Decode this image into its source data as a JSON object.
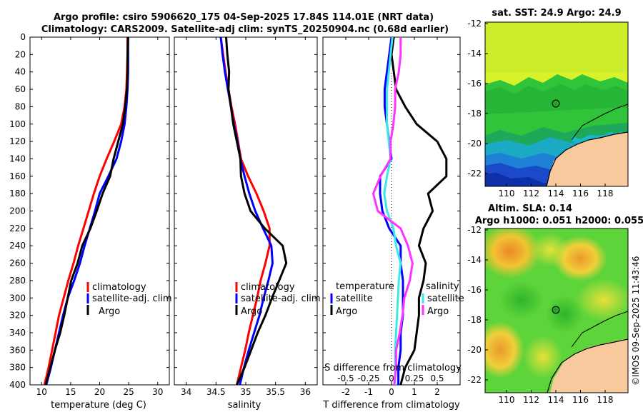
{
  "figure": {
    "title_line1": "Argo profile: csiro 5906620_175 04-Sep-2025 17.84S 114.01E (NRT data)",
    "title_line2": "Climatology: CARS2009. Satellite-adj clim: synTS_20250904.nc (0.68d earlier)",
    "credit": "©IMOS 09-Sep-2025 11:43:46"
  },
  "colors": {
    "climatology": "#ff0000",
    "satellite": "#0000ff",
    "argo": "#000000",
    "temperature_diff_sat": "#3ae8e8",
    "salinity_diff_sat": "#ff33ff"
  },
  "depth_ticks": [
    "0",
    "20",
    "40",
    "60",
    "80",
    "100",
    "120",
    "140",
    "160",
    "180",
    "200",
    "220",
    "240",
    "260",
    "280",
    "300",
    "320",
    "340",
    "360",
    "380",
    "400"
  ],
  "legend": {
    "climatology": "climatology",
    "satellite_adj": "satellite-adj. clim",
    "argo": "Argo",
    "temperature": "temperature",
    "salinity": "salinity",
    "satellite": "satellite"
  },
  "chart_data": [
    {
      "type": "line",
      "id": "temperature",
      "xlabel": "temperature (deg C)",
      "ylabel": "depth",
      "xlim": [
        8,
        32
      ],
      "ylim": [
        400,
        0
      ],
      "xticks": [
        10,
        15,
        20,
        25,
        30
      ],
      "xtick_labels": [
        "10",
        "15",
        "20",
        "25",
        "30"
      ],
      "depth": [
        0,
        20,
        40,
        60,
        80,
        100,
        120,
        140,
        160,
        180,
        200,
        220,
        240,
        260,
        280,
        300,
        320,
        340,
        360,
        380,
        400
      ],
      "series": [
        {
          "name": "climatology",
          "values": [
            24.8,
            24.8,
            24.7,
            24.6,
            24.3,
            23.7,
            22.5,
            21.2,
            20.0,
            19.0,
            18.1,
            17.2,
            16.3,
            15.5,
            14.6,
            13.8,
            13.0,
            12.4,
            11.8,
            11.2,
            10.5
          ]
        },
        {
          "name": "satellite-adj. clim",
          "values": [
            24.9,
            24.9,
            24.9,
            24.8,
            24.6,
            24.3,
            23.7,
            22.9,
            21.5,
            20.0,
            19.2,
            18.3,
            17.4,
            16.6,
            15.6,
            14.5,
            13.7,
            13.0,
            12.3,
            11.6,
            10.8
          ]
        },
        {
          "name": "Argo",
          "values": [
            24.9,
            24.8,
            24.8,
            24.7,
            24.4,
            24.0,
            23.2,
            22.4,
            21.8,
            20.5,
            19.5,
            18.4,
            17.0,
            16.2,
            15.1,
            14.5,
            13.9,
            13.2,
            12.3,
            11.5,
            10.7
          ]
        }
      ]
    },
    {
      "type": "line",
      "id": "salinity",
      "xlabel": "salinity",
      "ylabel": "",
      "xlim": [
        33.8,
        36.2
      ],
      "ylim": [
        400,
        0
      ],
      "xticks": [
        34,
        34.5,
        35,
        35.5,
        36
      ],
      "xtick_labels": [
        "34",
        "34.5",
        "35",
        "35.5",
        "36"
      ],
      "depth": [
        0,
        20,
        40,
        60,
        80,
        100,
        120,
        140,
        160,
        180,
        200,
        220,
        240,
        260,
        280,
        300,
        320,
        340,
        360,
        380,
        400
      ],
      "series": [
        {
          "name": "climatology",
          "values": [
            34.58,
            34.62,
            34.66,
            34.71,
            34.76,
            34.82,
            34.87,
            34.92,
            35.04,
            35.18,
            35.3,
            35.4,
            35.4,
            35.33,
            35.25,
            35.19,
            35.12,
            35.05,
            34.99,
            34.92,
            34.85
          ]
        },
        {
          "name": "satellite-adj. clim",
          "values": [
            34.58,
            34.61,
            34.65,
            34.7,
            34.75,
            34.8,
            34.86,
            34.91,
            34.98,
            35.06,
            35.16,
            35.29,
            35.43,
            35.45,
            35.38,
            35.3,
            35.23,
            35.14,
            35.05,
            34.97,
            34.9
          ]
        },
        {
          "name": "Argo",
          "values": [
            34.67,
            34.69,
            34.72,
            34.71,
            34.75,
            34.79,
            34.85,
            34.91,
            34.92,
            34.98,
            35.08,
            35.32,
            35.62,
            35.68,
            35.56,
            35.44,
            35.33,
            35.2,
            35.09,
            34.98,
            34.85
          ]
        }
      ]
    },
    {
      "type": "line",
      "id": "difference",
      "xlabel": "T difference from climatology",
      "xlabel_top": "S difference from climatology",
      "ylabel": "",
      "xlim": [
        -3,
        3
      ],
      "ylim": [
        400,
        0
      ],
      "xticks": [
        -2,
        -1,
        0,
        1,
        2
      ],
      "xtick_labels": [
        "-2",
        "-1",
        "0",
        "1",
        "2"
      ],
      "s_xlim": [
        -0.75,
        0.75
      ],
      "s_xticks": [
        -0.5,
        -0.25,
        0,
        0.25,
        0.5
      ],
      "s_xtick_labels": [
        "-0.5",
        "-0.25",
        "0",
        "0.25",
        "0.5"
      ],
      "depth": [
        0,
        20,
        40,
        60,
        80,
        100,
        120,
        140,
        160,
        180,
        200,
        220,
        240,
        260,
        280,
        300,
        320,
        340,
        360,
        380,
        400
      ],
      "series": [
        {
          "name": "temperature satellite",
          "axis": "T",
          "values": [
            0.0,
            -0.1,
            -0.2,
            -0.3,
            -0.3,
            -0.2,
            -0.1,
            0.0,
            -0.5,
            -0.5,
            -0.4,
            -0.1,
            0.4,
            0.4,
            0.5,
            0.5,
            0.5,
            0.4,
            0.4,
            0.3,
            0.3
          ]
        },
        {
          "name": "temperature Argo",
          "axis": "T",
          "values": [
            0.1,
            0.0,
            0.1,
            0.2,
            0.6,
            1.1,
            2.0,
            2.4,
            2.4,
            1.6,
            1.8,
            1.4,
            1.2,
            1.5,
            1.4,
            1.2,
            1.2,
            1.1,
            1.0,
            0.6,
            0.4
          ]
        },
        {
          "name": "salinity satellite",
          "axis": "S",
          "values": [
            0.01,
            -0.01,
            -0.03,
            -0.05,
            -0.05,
            -0.05,
            -0.03,
            -0.01,
            -0.05,
            -0.08,
            -0.05,
            0.02,
            0.05,
            0.1,
            0.08,
            0.07,
            0.06,
            0.05,
            0.04,
            0.04,
            0.04
          ]
        },
        {
          "name": "salinity Argo",
          "axis": "S",
          "values": [
            0.1,
            0.1,
            0.08,
            0.04,
            0.04,
            0.02,
            -0.01,
            -0.01,
            -0.12,
            -0.2,
            -0.15,
            0.1,
            0.18,
            0.23,
            0.2,
            0.14,
            0.12,
            0.09,
            0.05,
            0.05,
            0.03
          ]
        }
      ]
    }
  ],
  "maps": {
    "sst": {
      "title": "sat. SST: 24.9 Argo: 24.9",
      "lat_ticks": [
        "-12",
        "-14",
        "-16",
        "-18",
        "-20",
        "-22"
      ],
      "lon_ticks": [
        "110",
        "112",
        "114",
        "116",
        "118"
      ]
    },
    "sla": {
      "title_line1": "Altim. SLA: 0.14",
      "title_line2": "Argo h1000: 0.051 h2000: 0.055",
      "lat_ticks": [
        "-12",
        "-14",
        "-16",
        "-18",
        "-20",
        "-22"
      ],
      "lon_ticks": [
        "110",
        "112",
        "114",
        "116",
        "118"
      ]
    }
  }
}
